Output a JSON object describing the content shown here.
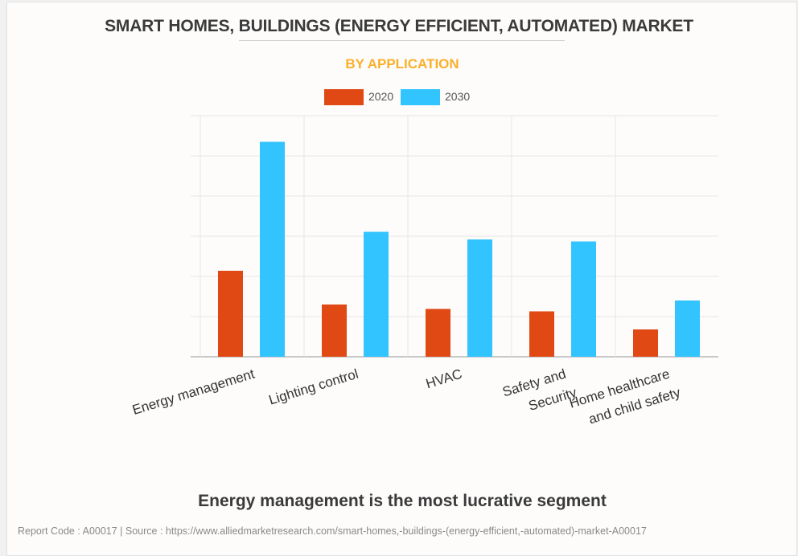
{
  "header": {
    "title": "SMART HOMES, BUILDINGS (ENERGY EFFICIENT, AUTOMATED) MARKET",
    "subtitle": "BY APPLICATION",
    "subtitle_color": "#FBAF2A"
  },
  "chart_data": {
    "type": "bar",
    "title": "SMART HOMES, BUILDINGS (ENERGY EFFICIENT, AUTOMATED) MARKET",
    "subtitle": "BY APPLICATION",
    "xlabel": "",
    "ylabel": "",
    "y_tick_labels_visible": false,
    "ylim": [
      0,
      6
    ],
    "grid": true,
    "legend_position": "top-center",
    "categories": [
      [
        "Energy management"
      ],
      [
        "Lighting control"
      ],
      [
        "HVAC"
      ],
      [
        "Safety and",
        "Security"
      ],
      [
        "Home healthcare",
        "and child safety"
      ]
    ],
    "series": [
      {
        "name": "2020",
        "color": "#E04814",
        "values": [
          2.14,
          1.3,
          1.19,
          1.13,
          0.68
        ]
      },
      {
        "name": "2030",
        "color": "#31C4FE",
        "values": [
          5.35,
          3.11,
          2.92,
          2.87,
          1.4
        ]
      }
    ]
  },
  "footer": {
    "takeaway": "Energy management is the most lucrative segment",
    "source": "Report Code : A00017  |  Source : https://www.alliedmarketresearch.com/smart-homes,-buildings-(energy-efficient,-automated)-market-A00017"
  }
}
